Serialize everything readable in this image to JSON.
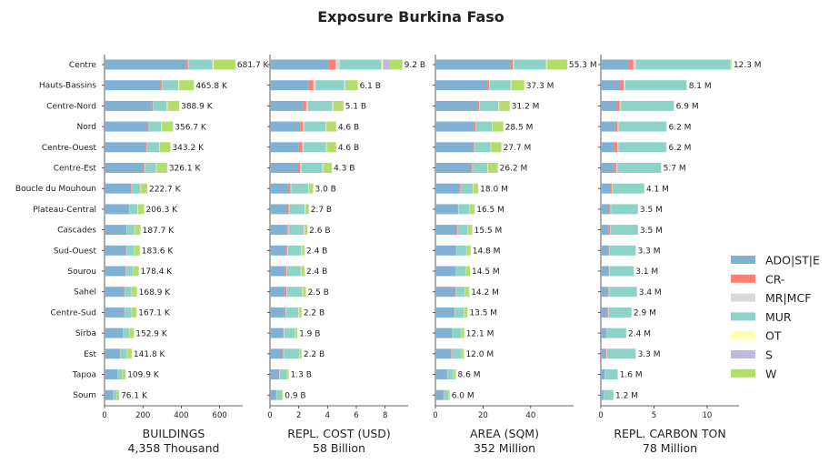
{
  "chart_data": {
    "type": "bar",
    "orientation": "horizontal",
    "stacked": true,
    "title": "Exposure Burkina Faso",
    "grid": false,
    "legend_placement": "right",
    "categories": [
      "Centre",
      "Hauts-Bassins",
      "Centre-Nord",
      "Nord",
      "Centre-Ouest",
      "Centre-Est",
      "Boucle du Mouhoun",
      "Plateau-Central",
      "Cascades",
      "Sud-Ouest",
      "Sourou",
      "Sahel",
      "Centre-Sud",
      "Sirba",
      "Est",
      "Tapoa",
      "Soum"
    ],
    "series_names": [
      "ADO|ST|E",
      "CR-",
      "MR|MCF",
      "MUR",
      "OT",
      "S",
      "W"
    ],
    "series_colors": [
      "#80b1d3",
      "#fb8072",
      "#d9d9d9",
      "#8dd3c7",
      "#ffffb3",
      "#bebada",
      "#b3de69"
    ],
    "panels": [
      {
        "xlabel": "BUILDINGS",
        "total": "4,358 Thousand",
        "xlim": [
          0,
          720
        ],
        "xticks": [
          0,
          200,
          400,
          600
        ],
        "xtick_labels": [
          "0",
          "200",
          "400",
          "600"
        ],
        "totals": [
          681.7,
          465.8,
          388.9,
          356.7,
          343.2,
          326.1,
          222.7,
          206.3,
          187.7,
          183.6,
          178.4,
          168.9,
          167.1,
          152.9,
          141.8,
          109.9,
          76.1
        ],
        "labels": [
          "681.7 K",
          "465.8 K",
          "388.9 K",
          "356.7 K",
          "343.2 K",
          "326.1 K",
          "222.7 K",
          "206.3 K",
          "187.7 K",
          "183.6 K",
          "178.4 K",
          "168.9 K",
          "167.1 K",
          "152.9 K",
          "141.8 K",
          "109.9 K",
          "76.1 K"
        ],
        "series": [
          {
            "name": "ADO|ST|E",
            "values": [
              425,
              290,
              245,
              225,
              215,
              205,
              138,
              125,
              115,
              112,
              110,
              102,
              102,
              95,
              80,
              68,
              45
            ]
          },
          {
            "name": "CR-",
            "values": [
              10,
              8,
              6,
              5,
              5,
              4,
              3,
              3,
              2,
              2,
              2,
              2,
              2,
              2,
              2,
              1,
              1
            ]
          },
          {
            "name": "MR|MCF",
            "values": [
              3,
              2,
              2,
              2,
              2,
              2,
              1,
              1,
              1,
              1,
              1,
              1,
              1,
              1,
              1,
              1,
              1
            ]
          },
          {
            "name": "MUR",
            "values": [
              125,
              85,
              72,
              63,
              62,
              58,
              45,
              43,
              38,
              37,
              36,
              35,
              35,
              30,
              34,
              20,
              17
            ]
          },
          {
            "name": "OT",
            "values": [
              5,
              3,
              3,
              2,
              2,
              2,
              2,
              2,
              1,
              1,
              1,
              1,
              1,
              1,
              1,
              1,
              1
            ]
          },
          {
            "name": "S",
            "values": [
              3,
              2,
              2,
              2,
              2,
              2,
              1,
              1,
              1,
              1,
              1,
              1,
              1,
              1,
              1,
              1,
              1
            ]
          },
          {
            "name": "W",
            "values": [
              110.7,
              75.8,
              58.9,
              57.7,
              55.2,
              53.1,
              32.7,
              31.3,
              29.7,
              29.6,
              27.4,
              26.9,
              25.1,
              22.9,
              22.8,
              17.9,
              10.1
            ]
          }
        ]
      },
      {
        "xlabel": "REPL. COST (USD)",
        "total": "58 Billion",
        "xlim": [
          0,
          9.6
        ],
        "xticks": [
          0,
          2,
          4,
          6,
          8
        ],
        "xtick_labels": [
          "0",
          "2",
          "4",
          "6",
          "8"
        ],
        "totals": [
          9.2,
          6.1,
          5.1,
          4.6,
          4.6,
          4.3,
          3.0,
          2.7,
          2.6,
          2.4,
          2.4,
          2.5,
          2.2,
          1.9,
          2.2,
          1.3,
          0.9
        ],
        "labels": [
          "9.2 B",
          "6.1 B",
          "5.1 B",
          "4.6 B",
          "4.6 B",
          "4.3 B",
          "3.0 B",
          "2.7 B",
          "2.6 B",
          "2.4 B",
          "2.4 B",
          "2.5 B",
          "2.2 B",
          "1.9 B",
          "2.2 B",
          "1.3 B",
          "0.9 B"
        ],
        "series": [
          {
            "name": "ADO|ST|E",
            "values": [
              4.1,
              2.7,
              2.3,
              2.1,
              2.0,
              1.9,
              1.3,
              1.2,
              1.15,
              1.1,
              1.05,
              1.05,
              1.0,
              0.9,
              0.85,
              0.6,
              0.42
            ]
          },
          {
            "name": "CR-",
            "values": [
              0.45,
              0.32,
              0.22,
              0.18,
              0.25,
              0.2,
              0.12,
              0.1,
              0.1,
              0.09,
              0.09,
              0.1,
              0.08,
              0.06,
              0.08,
              0.05,
              0.03
            ]
          },
          {
            "name": "MR|MCF",
            "values": [
              0.3,
              0.15,
              0.12,
              0.1,
              0.1,
              0.1,
              0.06,
              0.06,
              0.05,
              0.05,
              0.05,
              0.05,
              0.04,
              0.04,
              0.04,
              0.03,
              0.02
            ]
          },
          {
            "name": "MUR",
            "values": [
              2.9,
              2.0,
              1.7,
              1.5,
              1.55,
              1.45,
              1.2,
              1.05,
              1.05,
              0.95,
              0.95,
              1.05,
              0.85,
              0.75,
              1.05,
              0.5,
              0.35
            ]
          },
          {
            "name": "OT",
            "values": [
              0.1,
              0.05,
              0.05,
              0.04,
              0.04,
              0.04,
              0.03,
              0.03,
              0.03,
              0.03,
              0.03,
              0.03,
              0.03,
              0.02,
              0.02,
              0.01,
              0.01
            ]
          },
          {
            "name": "S",
            "values": [
              0.45,
              0.08,
              0.06,
              0.05,
              0.05,
              0.05,
              0.04,
              0.04,
              0.04,
              0.03,
              0.03,
              0.03,
              0.03,
              0.03,
              0.03,
              0.02,
              0.01
            ]
          },
          {
            "name": "W",
            "values": [
              0.9,
              0.8,
              0.65,
              0.63,
              0.61,
              0.56,
              0.25,
              0.22,
              0.18,
              0.15,
              0.2,
              0.19,
              0.17,
              0.1,
              0.13,
              0.09,
              0.06
            ]
          }
        ]
      },
      {
        "xlabel": "AREA (SQM)",
        "total": "352 Million",
        "xlim": [
          0,
          58
        ],
        "xticks": [
          0,
          20,
          40
        ],
        "xtick_labels": [
          "0",
          "20",
          "40"
        ],
        "totals": [
          55.3,
          37.3,
          31.2,
          28.5,
          27.7,
          26.2,
          18.0,
          16.5,
          15.5,
          14.8,
          14.5,
          14.2,
          13.5,
          12.1,
          12.0,
          8.6,
          6.0
        ],
        "labels": [
          "55.3 M",
          "37.3 M",
          "31.2 M",
          "28.5 M",
          "27.7 M",
          "26.2 M",
          "18.0 M",
          "16.5 M",
          "15.5 M",
          "14.8 M",
          "14.5 M",
          "14.2 M",
          "13.5 M",
          "12.1 M",
          "12.0 M",
          "8.6 M",
          "6.0 M"
        ],
        "series": [
          {
            "name": "ADO|ST|E",
            "values": [
              31.5,
              21.8,
              17.8,
              16.3,
              15.8,
              15.0,
              10.2,
              9.3,
              8.9,
              8.5,
              8.4,
              8.2,
              7.9,
              7.0,
              6.5,
              4.9,
              3.4
            ]
          },
          {
            "name": "CR-",
            "values": [
              1.0,
              0.7,
              0.6,
              0.5,
              0.5,
              0.5,
              0.3,
              0.3,
              0.3,
              0.25,
              0.25,
              0.25,
              0.2,
              0.2,
              0.2,
              0.15,
              0.1
            ]
          },
          {
            "name": "MR|MCF",
            "values": [
              0.5,
              0.3,
              0.3,
              0.2,
              0.2,
              0.2,
              0.15,
              0.15,
              0.1,
              0.1,
              0.1,
              0.1,
              0.1,
              0.1,
              0.1,
              0.05,
              0.05
            ]
          },
          {
            "name": "MUR",
            "values": [
              13.5,
              8.8,
              7.8,
              6.8,
              6.6,
              6.1,
              5.1,
              4.6,
              4.3,
              4.1,
              4.0,
              3.9,
              3.7,
              3.4,
              3.9,
              2.4,
              1.8
            ]
          },
          {
            "name": "OT",
            "values": [
              0.3,
              0.2,
              0.2,
              0.15,
              0.15,
              0.15,
              0.1,
              0.1,
              0.1,
              0.1,
              0.1,
              0.1,
              0.1,
              0.1,
              0.05,
              0.05,
              0.05
            ]
          },
          {
            "name": "S",
            "values": [
              0.2,
              0.1,
              0.1,
              0.1,
              0.1,
              0.1,
              0.05,
              0.05,
              0.05,
              0.05,
              0.05,
              0.05,
              0.05,
              0.05,
              0.05,
              0.05,
              0.05
            ]
          },
          {
            "name": "W",
            "values": [
              8.3,
              5.4,
              4.4,
              4.45,
              4.35,
              4.15,
              2.1,
              2.0,
              1.75,
              1.7,
              1.6,
              1.6,
              1.45,
              1.25,
              1.2,
              1.0,
              0.55
            ]
          }
        ]
      },
      {
        "xlabel": "REPL. CARBON TON",
        "total": "78 Million",
        "xlim": [
          0,
          13
        ],
        "xticks": [
          0,
          5,
          10
        ],
        "xtick_labels": [
          "0",
          "5",
          "10"
        ],
        "totals": [
          12.3,
          8.1,
          6.9,
          6.2,
          6.2,
          5.7,
          4.1,
          3.5,
          3.5,
          3.3,
          3.1,
          3.4,
          2.9,
          2.4,
          3.3,
          1.6,
          1.2
        ],
        "labels": [
          "12.3 M",
          "8.1 M",
          "6.9 M",
          "6.2 M",
          "6.2 M",
          "5.7 M",
          "4.1 M",
          "3.5 M",
          "3.5 M",
          "3.3 M",
          "3.1 M",
          "3.4 M",
          "2.9 M",
          "2.4 M",
          "3.3 M",
          "1.6 M",
          "1.2 M"
        ],
        "series": [
          {
            "name": "ADO|ST|E",
            "values": [
              2.6,
              1.8,
              1.5,
              1.35,
              1.3,
              1.25,
              0.9,
              0.8,
              0.75,
              0.7,
              0.7,
              0.65,
              0.62,
              0.5,
              0.45,
              0.35,
              0.22
            ]
          },
          {
            "name": "CR-",
            "values": [
              0.45,
              0.35,
              0.28,
              0.22,
              0.25,
              0.2,
              0.12,
              0.1,
              0.1,
              0.1,
              0.09,
              0.1,
              0.08,
              0.06,
              0.08,
              0.05,
              0.03
            ]
          },
          {
            "name": "MR|MCF",
            "values": [
              0.25,
              0.15,
              0.12,
              0.1,
              0.1,
              0.1,
              0.06,
              0.06,
              0.05,
              0.05,
              0.05,
              0.05,
              0.04,
              0.04,
              0.04,
              0.03,
              0.02
            ]
          },
          {
            "name": "MUR",
            "values": [
              8.9,
              5.75,
              4.95,
              4.5,
              4.5,
              4.1,
              3.0,
              2.52,
              2.58,
              2.43,
              2.24,
              2.58,
              2.14,
              1.78,
              2.71,
              1.15,
              0.91
            ]
          },
          {
            "name": "OT",
            "values": [
              0.02,
              0.02,
              0.02,
              0.01,
              0.01,
              0.01,
              0.01,
              0.01,
              0.01,
              0.01,
              0.01,
              0.01,
              0.01,
              0.01,
              0.01,
              0.01,
              0.01
            ]
          },
          {
            "name": "S",
            "values": [
              0.03,
              0.02,
              0.02,
              0.01,
              0.01,
              0.01,
              0.01,
              0.01,
              0.01,
              0.01,
              0.01,
              0.01,
              0.01,
              0.01,
              0.01,
              0.01,
              0.01
            ]
          },
          {
            "name": "W",
            "values": [
              0.05,
              0.01,
              0.01,
              0.01,
              0.03,
              0.03,
              0.0,
              0.0,
              0.0,
              0.0,
              0.0,
              0.0,
              0.0,
              0.0,
              0.0,
              0.0,
              0.0
            ]
          }
        ]
      }
    ]
  }
}
